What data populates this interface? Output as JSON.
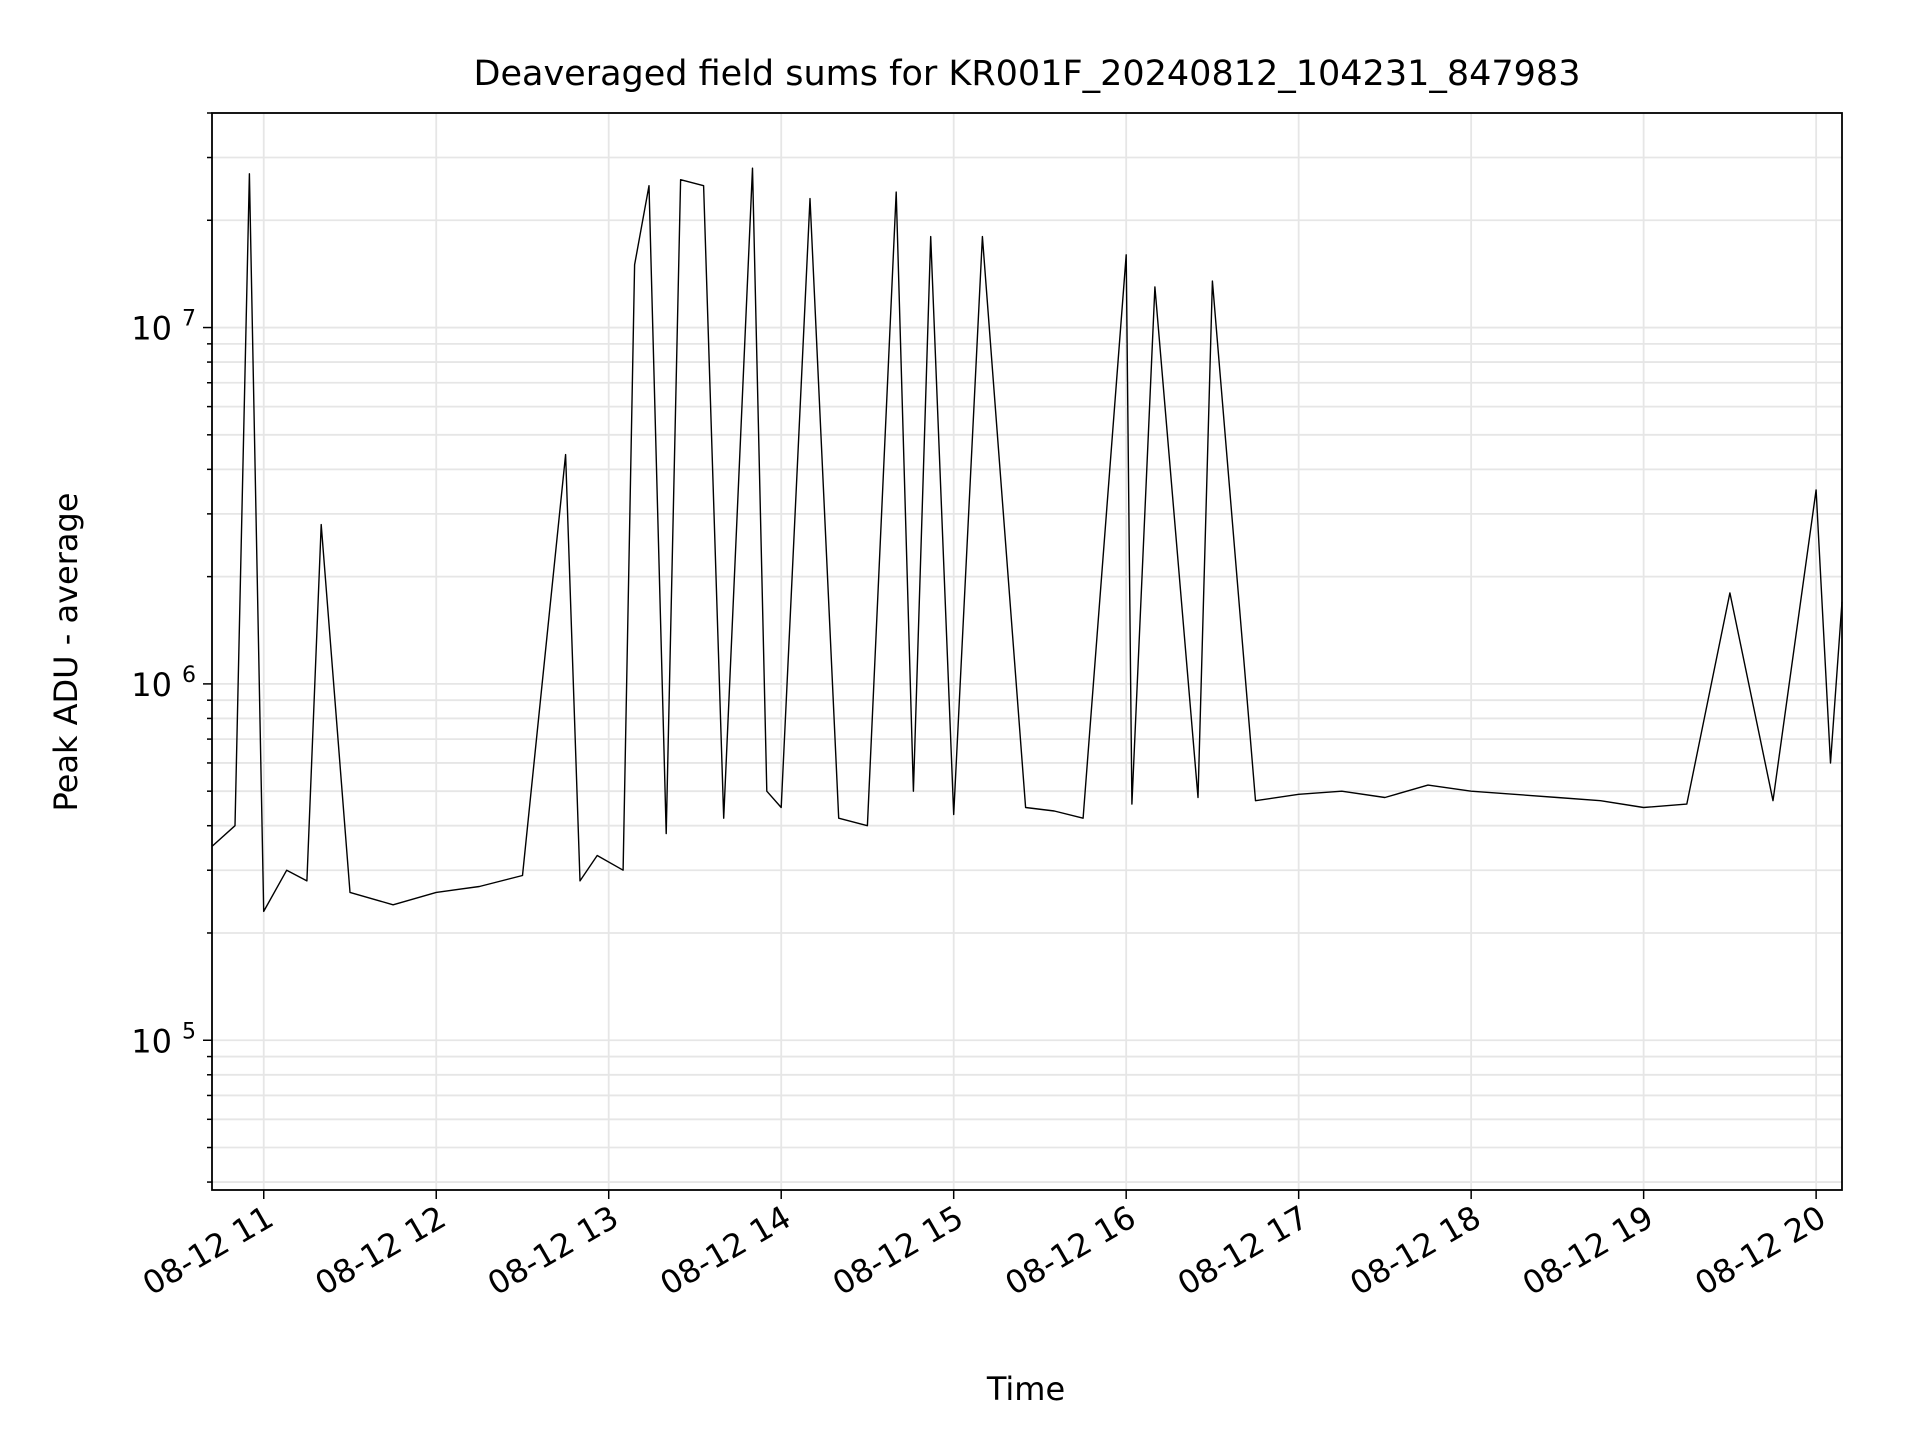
{
  "chart_data": {
    "type": "line",
    "title": "Deaveraged field sums for KR001F_20240812_104231_847983",
    "xlabel": "Time",
    "ylabel": "Peak ADU - average",
    "x_axis": {
      "kind": "time",
      "range": [
        "2024-08-12 10:42",
        "2024-08-12 20:09"
      ],
      "ticks": [
        {
          "value": "2024-08-12 11:00",
          "label": "08-12 11"
        },
        {
          "value": "2024-08-12 12:00",
          "label": "08-12 12"
        },
        {
          "value": "2024-08-12 13:00",
          "label": "08-12 13"
        },
        {
          "value": "2024-08-12 14:00",
          "label": "08-12 14"
        },
        {
          "value": "2024-08-12 15:00",
          "label": "08-12 15"
        },
        {
          "value": "2024-08-12 16:00",
          "label": "08-12 16"
        },
        {
          "value": "2024-08-12 17:00",
          "label": "08-12 17"
        },
        {
          "value": "2024-08-12 18:00",
          "label": "08-12 18"
        },
        {
          "value": "2024-08-12 19:00",
          "label": "08-12 19"
        },
        {
          "value": "2024-08-12 20:00",
          "label": "08-12 20"
        }
      ]
    },
    "y_axis": {
      "scale": "log",
      "range": [
        38000,
        40000000
      ],
      "major_ticks": [
        {
          "value": 100000,
          "base": "10",
          "exp": "5"
        },
        {
          "value": 1000000,
          "base": "10",
          "exp": "6"
        },
        {
          "value": 10000000,
          "base": "10",
          "exp": "7"
        }
      ]
    },
    "grid": true,
    "legend": "none",
    "line_color": "#000000",
    "series": [
      {
        "x": [
          "2024-08-12 10:42",
          "2024-08-12 10:50",
          "2024-08-12 10:55",
          "2024-08-12 11:00",
          "2024-08-12 11:08",
          "2024-08-12 11:15",
          "2024-08-12 11:20",
          "2024-08-12 11:30",
          "2024-08-12 11:45",
          "2024-08-12 12:00",
          "2024-08-12 12:15",
          "2024-08-12 12:30",
          "2024-08-12 12:45",
          "2024-08-12 12:50",
          "2024-08-12 12:56",
          "2024-08-12 13:05",
          "2024-08-12 13:09",
          "2024-08-12 13:14",
          "2024-08-12 13:20",
          "2024-08-12 13:25",
          "2024-08-12 13:33",
          "2024-08-12 13:40",
          "2024-08-12 13:50",
          "2024-08-12 13:55",
          "2024-08-12 14:00",
          "2024-08-12 14:10",
          "2024-08-12 14:20",
          "2024-08-12 14:30",
          "2024-08-12 14:40",
          "2024-08-12 14:46",
          "2024-08-12 14:52",
          "2024-08-12 15:00",
          "2024-08-12 15:10",
          "2024-08-12 15:25",
          "2024-08-12 15:35",
          "2024-08-12 15:45",
          "2024-08-12 16:00",
          "2024-08-12 16:02",
          "2024-08-12 16:10",
          "2024-08-12 16:25",
          "2024-08-12 16:30",
          "2024-08-12 16:45",
          "2024-08-12 17:00",
          "2024-08-12 17:15",
          "2024-08-12 17:30",
          "2024-08-12 17:45",
          "2024-08-12 18:00",
          "2024-08-12 18:15",
          "2024-08-12 18:30",
          "2024-08-12 18:45",
          "2024-08-12 19:00",
          "2024-08-12 19:15",
          "2024-08-12 19:30",
          "2024-08-12 19:45",
          "2024-08-12 20:00",
          "2024-08-12 20:05",
          "2024-08-12 20:09"
        ],
        "y": [
          350000,
          400000,
          27000000,
          230000,
          300000,
          280000,
          2800000,
          260000,
          240000,
          260000,
          270000,
          290000,
          4400000,
          280000,
          330000,
          300000,
          15000000,
          25000000,
          380000,
          26000000,
          25000000,
          420000,
          28000000,
          500000,
          450000,
          23000000,
          420000,
          400000,
          24000000,
          500000,
          18000000,
          430000,
          18000000,
          450000,
          440000,
          420000,
          16000000,
          460000,
          13000000,
          480000,
          13500000,
          470000,
          490000,
          500000,
          480000,
          520000,
          500000,
          490000,
          480000,
          470000,
          450000,
          460000,
          1800000,
          470000,
          3500000,
          600000,
          1700000
        ]
      }
    ]
  }
}
